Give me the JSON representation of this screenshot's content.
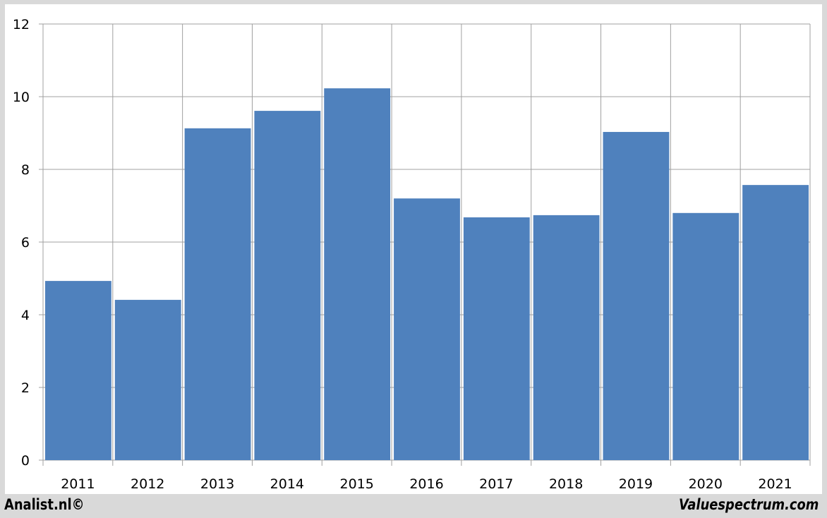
{
  "chart_data": {
    "type": "bar",
    "categories": [
      "2011",
      "2012",
      "2013",
      "2014",
      "2015",
      "2016",
      "2017",
      "2018",
      "2019",
      "2020",
      "2021"
    ],
    "values": [
      4.93,
      4.41,
      9.13,
      9.61,
      10.23,
      7.2,
      6.68,
      6.74,
      9.03,
      6.8,
      7.57
    ],
    "title": "",
    "xlabel": "",
    "ylabel": "",
    "ylim": [
      0,
      12
    ],
    "yticks": [
      0,
      2,
      4,
      6,
      8,
      10,
      12
    ],
    "grid": true,
    "bar_color": "#4f81bd"
  },
  "footer": {
    "left": "Analist.nl©",
    "right": "Valuespectrum.com"
  }
}
